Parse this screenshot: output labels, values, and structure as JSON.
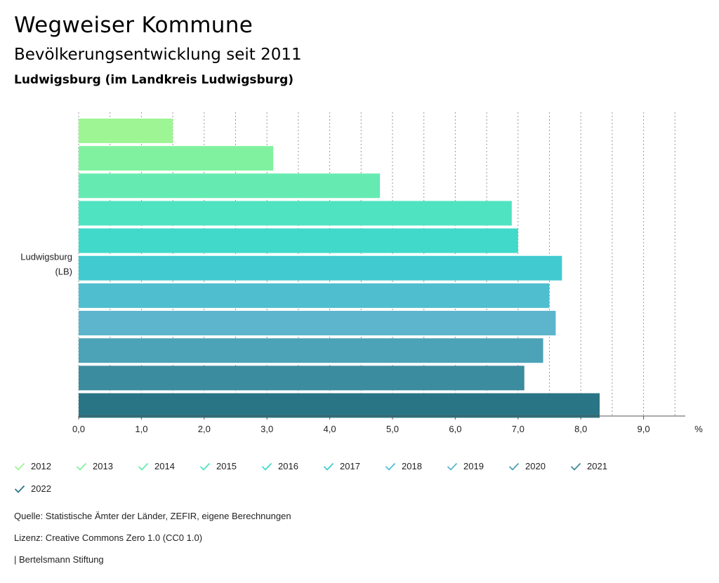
{
  "header": {
    "title": "Wegweiser Kommune",
    "subtitle": "Bevölkerungsentwicklung seit 2011",
    "region": "Ludwigsburg (im Landkreis Ludwigsburg)"
  },
  "chart_data": {
    "type": "bar",
    "orientation": "horizontal",
    "category_label_lines": [
      "Ludwigsburg",
      "(LB)"
    ],
    "unit": "%",
    "xlim": [
      0,
      10
    ],
    "x_ticks": [
      "0,0",
      "1,0",
      "2,0",
      "3,0",
      "4,0",
      "5,0",
      "6,0",
      "7,0",
      "8,0",
      "9,0"
    ],
    "grid": true,
    "legend_position": "bottom",
    "series": [
      {
        "name": "2012",
        "value": 1.5,
        "color": "#9ef594"
      },
      {
        "name": "2013",
        "value": 3.1,
        "color": "#80f29f"
      },
      {
        "name": "2014",
        "value": 4.8,
        "color": "#65ebb1"
      },
      {
        "name": "2015",
        "value": 6.9,
        "color": "#4fe3c1"
      },
      {
        "name": "2016",
        "value": 7.0,
        "color": "#41d9c9"
      },
      {
        "name": "2017",
        "value": 7.7,
        "color": "#41cbd0"
      },
      {
        "name": "2018",
        "value": 7.5,
        "color": "#4fbfd0"
      },
      {
        "name": "2019",
        "value": 7.6,
        "color": "#5cb5cc"
      },
      {
        "name": "2020",
        "value": 7.4,
        "color": "#4ca2b6"
      },
      {
        "name": "2021",
        "value": 7.1,
        "color": "#3b8c9e"
      },
      {
        "name": "2022",
        "value": 8.3,
        "color": "#297585"
      }
    ]
  },
  "footer": {
    "source": "Quelle: Statistische Ämter der Länder, ZEFIR, eigene Berechnungen",
    "license": "Lizenz: Creative Commons Zero 1.0 (CC0 1.0)",
    "publisher": "| Bertelsmann Stiftung"
  }
}
